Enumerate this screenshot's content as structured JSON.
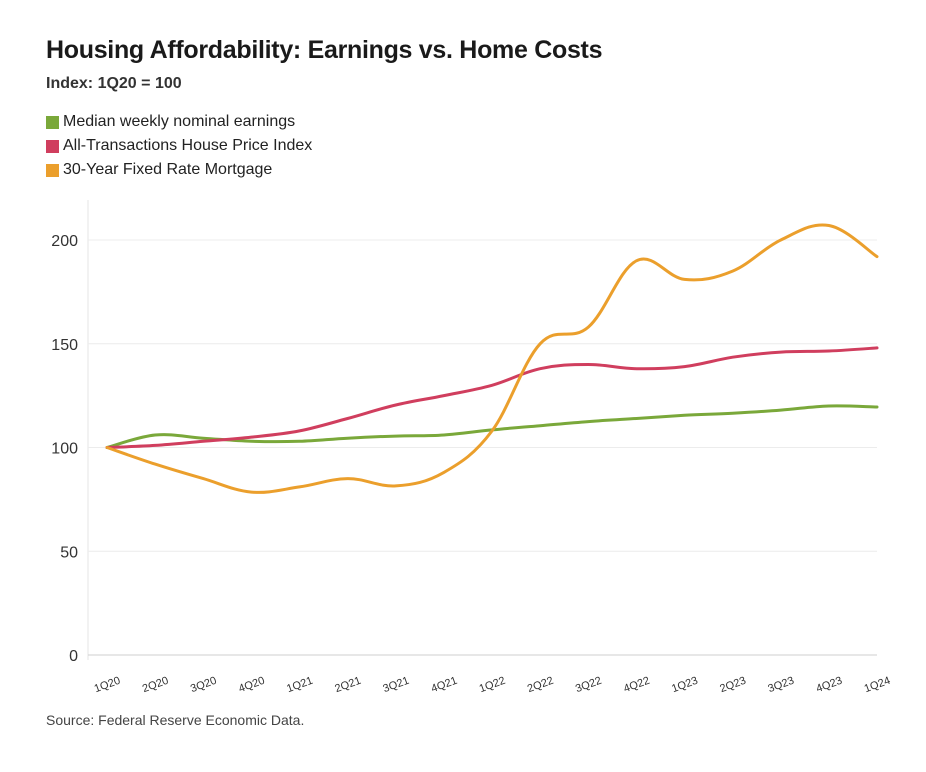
{
  "title": "Housing Affordability: Earnings vs. Home Costs",
  "subtitle": "Index: 1Q20 = 100",
  "source": "Source: Federal Reserve Economic Data.",
  "legend": [
    {
      "label": "Median weekly nominal earnings",
      "color": "#7aa83a"
    },
    {
      "label": "All-Transactions House Price Index",
      "color": "#d03e5e"
    },
    {
      "label": "30-Year Fixed Rate Mortgage",
      "color": "#eb9f2c"
    }
  ],
  "chart_data": {
    "type": "line",
    "title": "Housing Affordability: Earnings vs. Home Costs",
    "subtitle": "Index: 1Q20 = 100",
    "xlabel": "",
    "ylabel": "",
    "ylim": [
      0,
      200
    ],
    "yticks": [
      0,
      50,
      100,
      150,
      200
    ],
    "categories": [
      "1Q20",
      "2Q20",
      "3Q20",
      "4Q20",
      "1Q21",
      "2Q21",
      "3Q21",
      "4Q21",
      "1Q22",
      "2Q22",
      "3Q22",
      "4Q22",
      "1Q23",
      "2Q23",
      "3Q23",
      "4Q23",
      "1Q24"
    ],
    "series": [
      {
        "name": "Median weekly nominal earnings",
        "color": "#7aa83a",
        "values": [
          100,
          106,
          104.5,
          103,
          103,
          104.5,
          105.5,
          106,
          108.5,
          110.5,
          112.5,
          114,
          115.5,
          116.5,
          118,
          120,
          119.5
        ]
      },
      {
        "name": "All-Transactions House Price Index",
        "color": "#d03e5e",
        "values": [
          100,
          101,
          103,
          105,
          108,
          114,
          120.5,
          125,
          130,
          138,
          140,
          138,
          139,
          143.5,
          146,
          146.5,
          148
        ]
      },
      {
        "name": "30-Year Fixed Rate Mortgage",
        "color": "#eb9f2c",
        "values": [
          100,
          92,
          85,
          78.5,
          81,
          85,
          81.5,
          88,
          108,
          150,
          158,
          190,
          181,
          185,
          200,
          207,
          192
        ]
      }
    ]
  }
}
